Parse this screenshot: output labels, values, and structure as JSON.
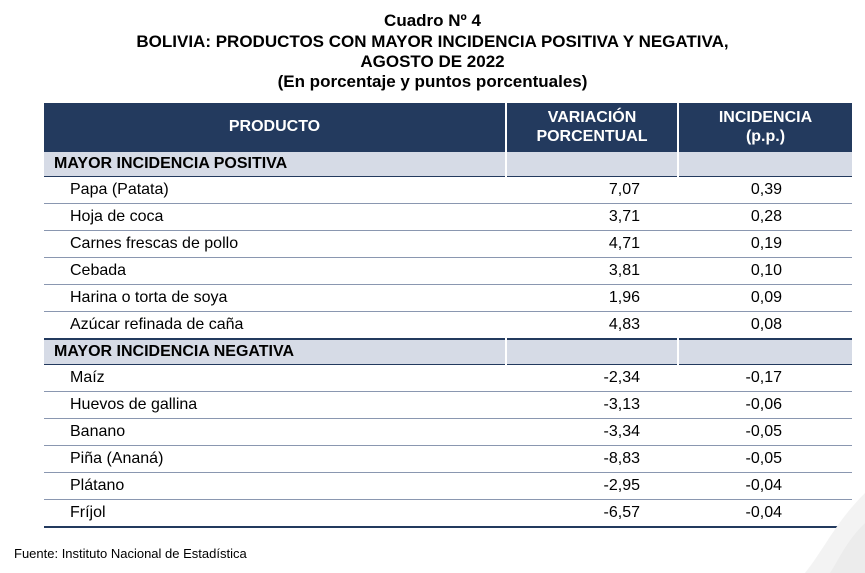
{
  "title": {
    "number": "Cuadro Nº 4",
    "main_line1": "BOLIVIA: PRODUCTOS CON MAYOR INCIDENCIA POSITIVA Y NEGATIVA,",
    "main_line2": "AGOSTO DE 2022",
    "subtitle": "(En porcentaje y puntos porcentuales)"
  },
  "table": {
    "headers": {
      "producto": "PRODUCTO",
      "variacion_line1": "VARIACIÓN",
      "variacion_line2": "PORCENTUAL",
      "incidencia_line1": "INCIDENCIA",
      "incidencia_line2": "(p.p.)"
    },
    "sections": [
      {
        "label": "MAYOR INCIDENCIA POSITIVA",
        "rows": [
          {
            "producto": "Papa (Patata)",
            "variacion": "7,07",
            "incidencia": "0,39"
          },
          {
            "producto": "Hoja de coca",
            "variacion": "3,71",
            "incidencia": "0,28"
          },
          {
            "producto": "Carnes frescas de pollo",
            "variacion": "4,71",
            "incidencia": "0,19"
          },
          {
            "producto": "Cebada",
            "variacion": "3,81",
            "incidencia": "0,10"
          },
          {
            "producto": "Harina o torta de soya",
            "variacion": "1,96",
            "incidencia": "0,09"
          },
          {
            "producto": "Azúcar refinada de caña",
            "variacion": "4,83",
            "incidencia": "0,08"
          }
        ]
      },
      {
        "label": "MAYOR INCIDENCIA NEGATIVA",
        "rows": [
          {
            "producto": "Maíz",
            "variacion": "-2,34",
            "incidencia": "-0,17"
          },
          {
            "producto": "Huevos de gallina",
            "variacion": "-3,13",
            "incidencia": "-0,06"
          },
          {
            "producto": "Banano",
            "variacion": "-3,34",
            "incidencia": "-0,05"
          },
          {
            "producto": "Piña (Ananá)",
            "variacion": "-8,83",
            "incidencia": "-0,05"
          },
          {
            "producto": "Plátano",
            "variacion": "-2,95",
            "incidencia": "-0,04"
          },
          {
            "producto": "Fríjol",
            "variacion": "-6,57",
            "incidencia": "-0,04"
          }
        ]
      }
    ]
  },
  "source": "Fuente: Instituto Nacional de Estadística",
  "colors": {
    "header_bg": "#233a5e",
    "section_bg": "#d6dbe6",
    "row_border": "#8a97b0"
  }
}
